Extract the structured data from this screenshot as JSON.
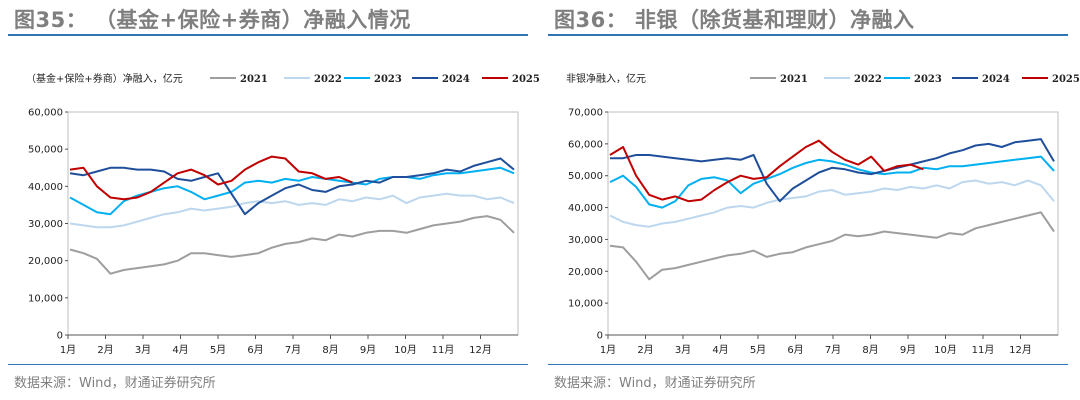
{
  "source_text": "数据来源：Wind，财通证券研究所",
  "chart_data": [
    {
      "type": "line",
      "title": "图35：  （基金+保险+券商）净融入情况",
      "ylabel": "（基金+保险+券商）净融入，亿元",
      "ylim": [
        0,
        60000
      ],
      "yticks": [
        "0",
        "10,000",
        "20,000",
        "30,000",
        "40,000",
        "50,000",
        "60,000"
      ],
      "ytick_values": [
        0,
        10000,
        20000,
        30000,
        40000,
        50000,
        60000
      ],
      "xticks": [
        "1月",
        "2月",
        "3月",
        "4月",
        "5月",
        "6月",
        "7月",
        "8月",
        "9月",
        "10月",
        "11月",
        "12月"
      ],
      "legend_position": "top",
      "series": [
        {
          "name": "2021",
          "color": "#9e9e9e",
          "values": [
            23000,
            22000,
            20500,
            16500,
            17500,
            18000,
            18500,
            19000,
            20000,
            22000,
            22000,
            21500,
            21000,
            21500,
            22000,
            23500,
            24500,
            25000,
            26000,
            25500,
            27000,
            26500,
            27500,
            28000,
            28000,
            27500,
            28500,
            29500,
            30000,
            30500,
            31500,
            32000,
            31000,
            27500
          ]
        },
        {
          "name": "2022",
          "color": "#bdd7ee",
          "values": [
            30000,
            29500,
            29000,
            29000,
            29500,
            30500,
            31500,
            32500,
            33000,
            34000,
            33500,
            34000,
            34500,
            35500,
            36000,
            35500,
            36000,
            35000,
            35500,
            35000,
            36500,
            36000,
            37000,
            36500,
            37500,
            35500,
            37000,
            37500,
            38000,
            37500,
            37500,
            36500,
            37000,
            35500
          ]
        },
        {
          "name": "2023",
          "color": "#00b0f0",
          "values": [
            37000,
            35000,
            33000,
            32500,
            36000,
            37500,
            38500,
            39500,
            40000,
            38500,
            36500,
            37500,
            38500,
            41000,
            41500,
            41000,
            42000,
            41500,
            42500,
            42000,
            41500,
            41000,
            40500,
            42000,
            42500,
            42500,
            42000,
            43000,
            43500,
            43500,
            44000,
            44500,
            45000,
            43500
          ]
        },
        {
          "name": "2024",
          "color": "#1f4e9a",
          "values": [
            43500,
            43000,
            44000,
            45000,
            45000,
            44500,
            44500,
            44000,
            42000,
            41500,
            42500,
            43500,
            38000,
            32500,
            35500,
            37500,
            39500,
            40500,
            39000,
            38500,
            40000,
            40500,
            41500,
            41000,
            42500,
            42500,
            43000,
            43500,
            44500,
            44000,
            45500,
            46500,
            47500,
            44500
          ]
        },
        {
          "name": "2025",
          "color": "#c00000",
          "values": [
            44500,
            45000,
            40000,
            37000,
            36500,
            37000,
            38500,
            41000,
            43500,
            44500,
            43000,
            40500,
            41500,
            44500,
            46500,
            48000,
            47500,
            44000,
            43500,
            42000,
            42500,
            41000
          ]
        }
      ]
    },
    {
      "type": "line",
      "title": "图36：  非银（除货基和理财）净融入",
      "ylabel": "非银净融入，亿元",
      "ylim": [
        0,
        70000
      ],
      "yticks": [
        "0",
        "10,000",
        "20,000",
        "30,000",
        "40,000",
        "50,000",
        "60,000",
        "70,000"
      ],
      "ytick_values": [
        0,
        10000,
        20000,
        30000,
        40000,
        50000,
        60000,
        70000
      ],
      "xticks": [
        "1月",
        "2月",
        "3月",
        "4月",
        "5月",
        "6月",
        "7月",
        "8月",
        "9月",
        "10月",
        "11月",
        "12月"
      ],
      "legend_position": "top",
      "series": [
        {
          "name": "2021",
          "color": "#9e9e9e",
          "values": [
            28000,
            27500,
            23000,
            17500,
            20500,
            21000,
            22000,
            23000,
            24000,
            25000,
            25500,
            26500,
            24500,
            25500,
            26000,
            27500,
            28500,
            29500,
            31500,
            31000,
            31500,
            32500,
            32000,
            31500,
            31000,
            30500,
            32000,
            31500,
            33500,
            34500,
            35500,
            36500,
            37500,
            38500,
            32500
          ]
        },
        {
          "name": "2022",
          "color": "#bdd7ee",
          "values": [
            37500,
            35500,
            34500,
            34000,
            35000,
            35500,
            36500,
            37500,
            38500,
            40000,
            40500,
            40000,
            41500,
            42500,
            43000,
            43500,
            45000,
            45500,
            44000,
            44500,
            45000,
            46000,
            45500,
            46500,
            46000,
            47000,
            46000,
            48000,
            48500,
            47500,
            48000,
            47000,
            48500,
            47000,
            42000
          ]
        },
        {
          "name": "2023",
          "color": "#00b0f0",
          "values": [
            48000,
            50000,
            46500,
            41000,
            40000,
            42000,
            47000,
            49000,
            49500,
            48500,
            44500,
            47500,
            49000,
            50500,
            52500,
            54000,
            55000,
            54500,
            53500,
            52000,
            51000,
            50500,
            51000,
            51000,
            52500,
            52000,
            53000,
            53000,
            53500,
            54000,
            54500,
            55000,
            55500,
            56000,
            51500
          ]
        },
        {
          "name": "2024",
          "color": "#1f4e9a",
          "values": [
            55500,
            55500,
            56500,
            56500,
            56000,
            55500,
            55000,
            54500,
            55000,
            55500,
            55000,
            56500,
            47500,
            42000,
            46000,
            48500,
            51000,
            52500,
            52000,
            51000,
            50500,
            51500,
            52500,
            53500,
            54500,
            55500,
            57000,
            58000,
            59500,
            60000,
            59000,
            60500,
            61000,
            61500,
            54500
          ]
        },
        {
          "name": "2025",
          "color": "#c00000",
          "values": [
            56500,
            59000,
            50000,
            44000,
            42500,
            43500,
            42000,
            42500,
            45500,
            48000,
            50000,
            49000,
            49500,
            53000,
            56000,
            59000,
            61000,
            57500,
            55000,
            53500,
            56000,
            51500,
            53000,
            53500,
            52000
          ]
        }
      ]
    }
  ]
}
